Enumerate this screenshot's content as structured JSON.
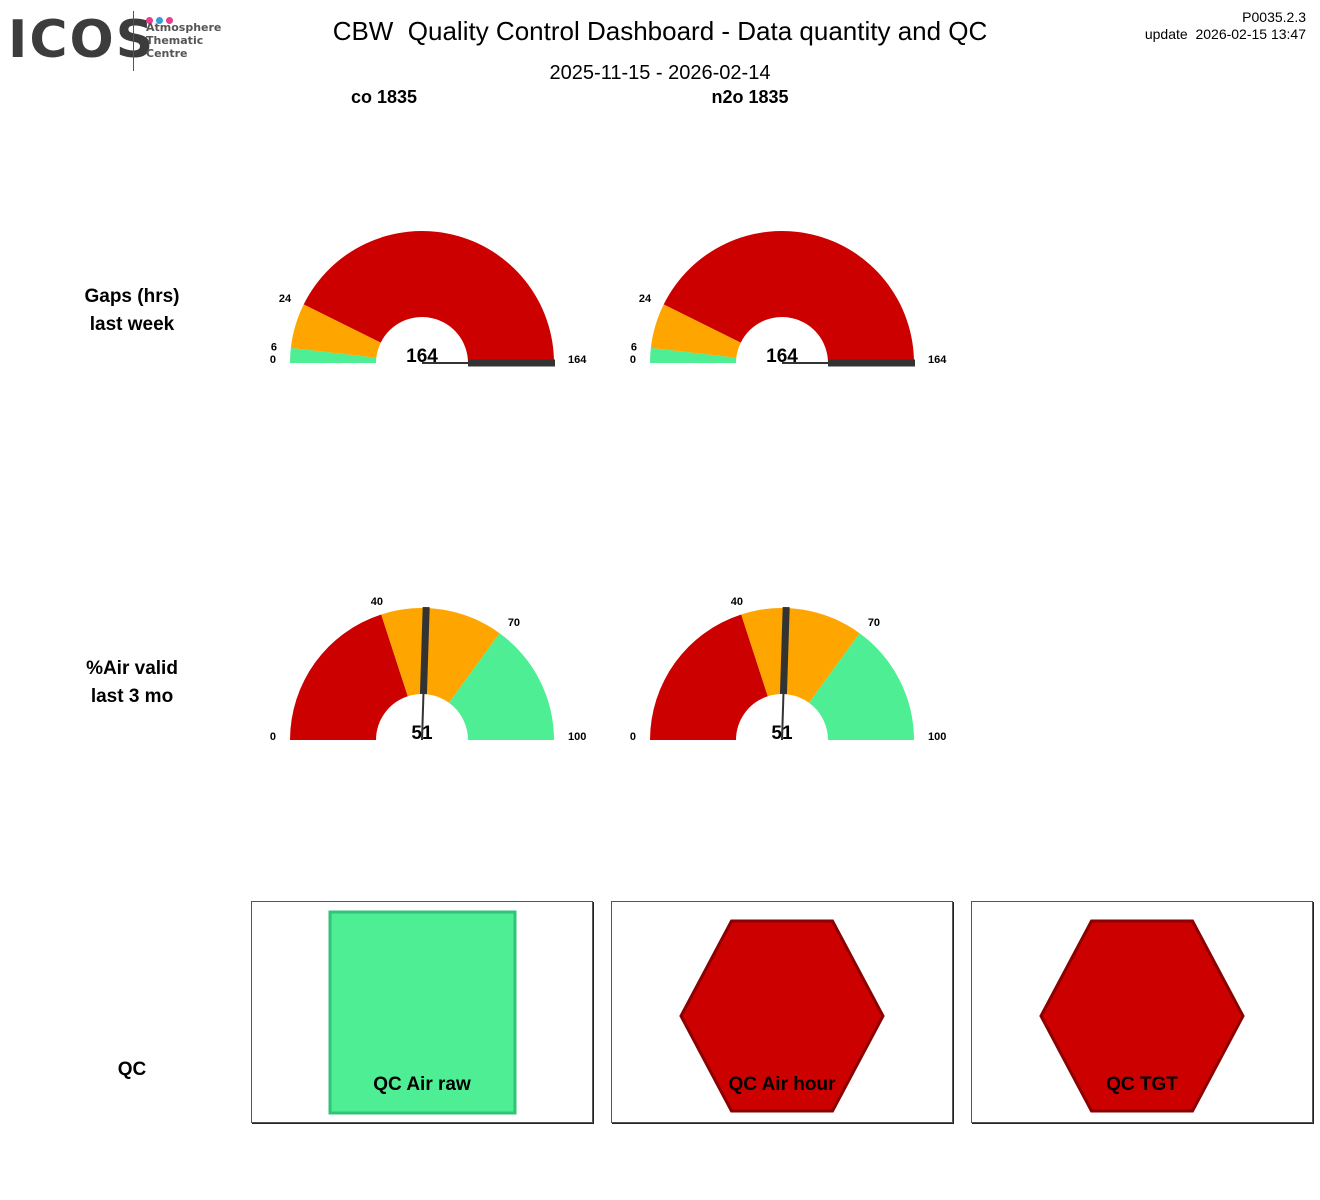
{
  "header": {
    "logo_word": "ICOS",
    "logo_lines": [
      "Atmosphere",
      "Thematic",
      "Centre"
    ],
    "logo_dot_colors": [
      "#e83e8c",
      "#2f9fe0",
      "#e83e8c"
    ],
    "title": "CBW  Quality Control Dashboard - Data quantity and QC",
    "date_range": "2025-11-15 - 2026-02-14",
    "version": "P0035.2.3",
    "update": "update  2026-02-15 13:47"
  },
  "columns": [
    "co 1835",
    "n2o 1835"
  ],
  "rows": {
    "gaps": [
      "Gaps (hrs)",
      "last week"
    ],
    "air_valid": [
      "%Air valid",
      "last 3 mo"
    ],
    "qc": "QC"
  },
  "colors": {
    "good": "#4eee94",
    "warn": "#ffa500",
    "bad": "#cd0000",
    "needle": "#333333",
    "good_border": "#2fc477",
    "bad_border": "#8b0000"
  },
  "chart_data": [
    {
      "type": "gauge",
      "title": "co 1835 - Gaps (hrs) last week",
      "min": 0,
      "max": 164,
      "bands": [
        {
          "from": 0,
          "to": 6,
          "level": "good"
        },
        {
          "from": 6,
          "to": 24,
          "level": "warn"
        },
        {
          "from": 24,
          "to": 164,
          "level": "bad"
        }
      ],
      "tick_labels": [
        "0",
        "6",
        "24",
        "164"
      ],
      "value": 164,
      "value_label": "164"
    },
    {
      "type": "gauge",
      "title": "n2o 1835 - Gaps (hrs) last week",
      "min": 0,
      "max": 164,
      "bands": [
        {
          "from": 0,
          "to": 6,
          "level": "good"
        },
        {
          "from": 6,
          "to": 24,
          "level": "warn"
        },
        {
          "from": 24,
          "to": 164,
          "level": "bad"
        }
      ],
      "tick_labels": [
        "0",
        "6",
        "24",
        "164"
      ],
      "value": 164,
      "value_label": "164"
    },
    {
      "type": "gauge",
      "title": "co 1835 - %Air valid last 3 mo",
      "min": 0,
      "max": 100,
      "bands": [
        {
          "from": 0,
          "to": 40,
          "level": "bad"
        },
        {
          "from": 40,
          "to": 70,
          "level": "warn"
        },
        {
          "from": 70,
          "to": 100,
          "level": "good"
        }
      ],
      "tick_labels": [
        "0",
        "40",
        "70",
        "100"
      ],
      "value": 51,
      "value_label": "51"
    },
    {
      "type": "gauge",
      "title": "n2o 1835 - %Air valid last 3 mo",
      "min": 0,
      "max": 100,
      "bands": [
        {
          "from": 0,
          "to": 40,
          "level": "bad"
        },
        {
          "from": 40,
          "to": 70,
          "level": "warn"
        },
        {
          "from": 70,
          "to": 100,
          "level": "good"
        }
      ],
      "tick_labels": [
        "0",
        "40",
        "70",
        "100"
      ],
      "value": 51,
      "value_label": "51"
    }
  ],
  "qc_indicators": [
    {
      "label": "QC Air raw",
      "shape": "square",
      "level": "good"
    },
    {
      "label": "QC Air hour",
      "shape": "hexagon",
      "level": "bad"
    },
    {
      "label": "QC TGT",
      "shape": "hexagon",
      "level": "bad"
    }
  ]
}
